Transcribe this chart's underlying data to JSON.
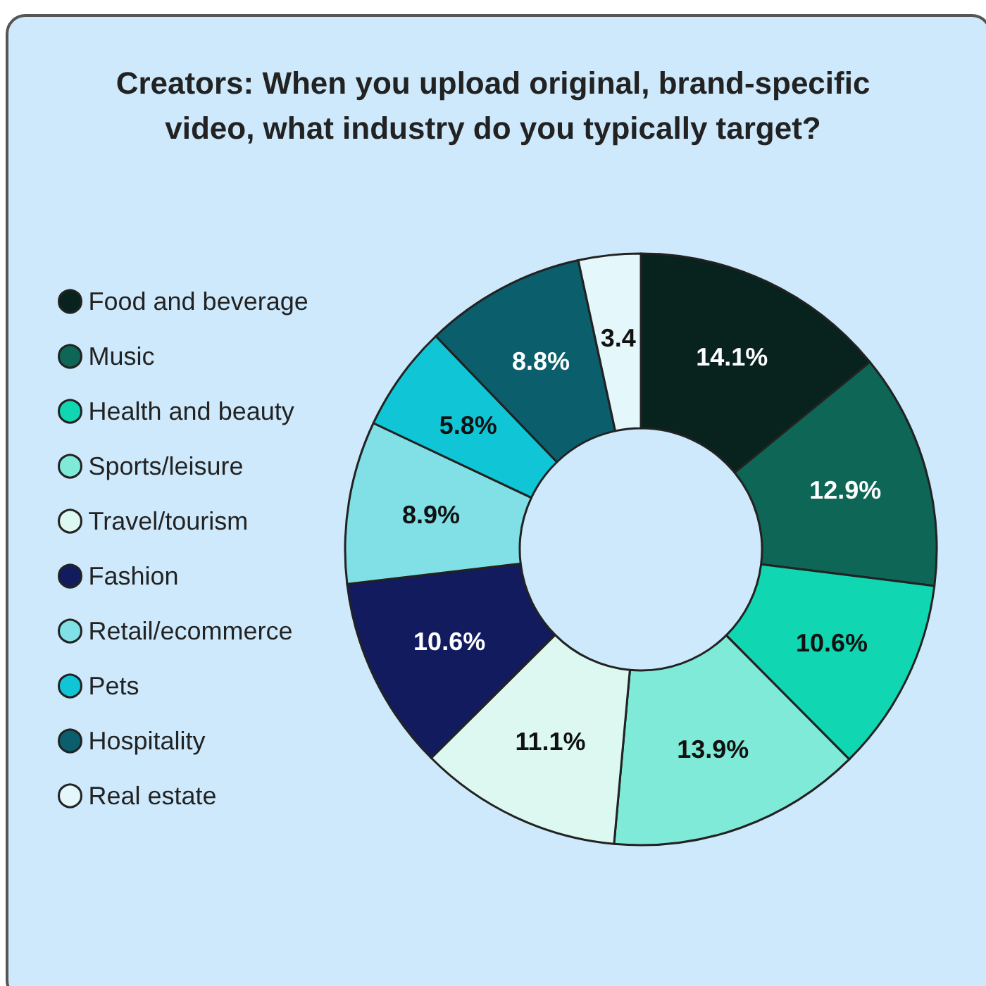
{
  "chart_data": {
    "type": "donut",
    "title": "Creators: When you upload original, brand-specific\nvideo, what industry do you typically target?",
    "categories": [
      "Food and beverage",
      "Music",
      "Health and beauty",
      "Sports/leisure",
      "Travel/tourism",
      "Fashion",
      "Retail/ecommerce",
      "Pets",
      "Hospitality",
      "Real estate"
    ],
    "values": [
      14.1,
      12.9,
      10.6,
      13.9,
      11.1,
      10.6,
      8.9,
      5.8,
      8.8,
      3.4
    ],
    "value_labels": [
      "14.1%",
      "12.9%",
      "10.6%",
      "13.9%",
      "11.1%",
      "10.6%",
      "8.9%",
      "5.8%",
      "8.8%",
      "3.4"
    ],
    "colors": [
      "#08221e",
      "#0d6656",
      "#10d6b2",
      "#80ead9",
      "#dcf8f1",
      "#131b5f",
      "#80e0e6",
      "#10c6d6",
      "#0b5f6c",
      "#e4f7fb"
    ],
    "legend": "left"
  }
}
